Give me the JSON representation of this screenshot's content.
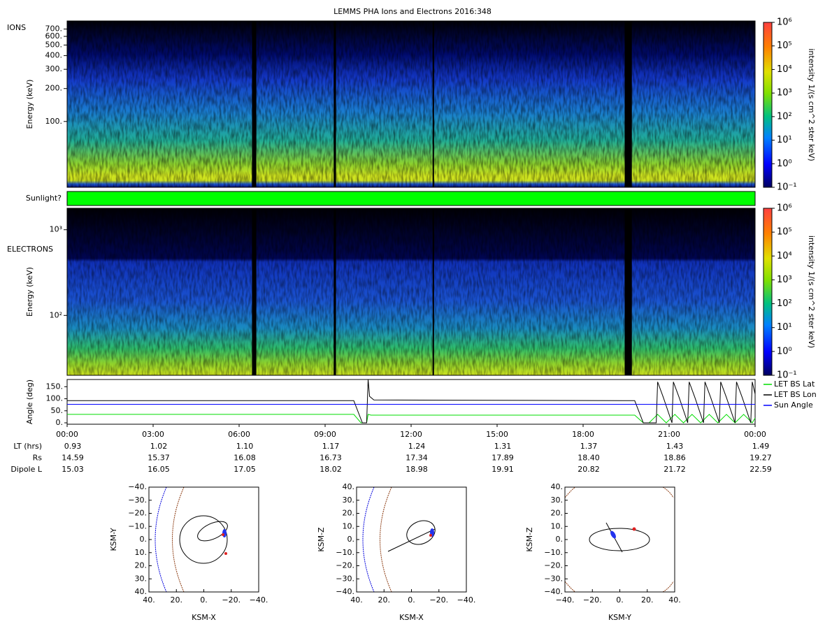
{
  "title": "LEMMS PHA Ions and Electrons  2016:348",
  "ions": {
    "label": "IONS",
    "ylabel": "Energy (keV)",
    "ylim": [
      25,
      830
    ],
    "log": true,
    "yticks": [
      {
        "value": 100,
        "label": "100."
      },
      {
        "value": 200,
        "label": "200."
      },
      {
        "value": 300,
        "label": "300."
      },
      {
        "value": 400,
        "label": "400."
      },
      {
        "value": 500,
        "label": "500."
      },
      {
        "value": 600,
        "label": "600."
      },
      {
        "value": 700,
        "label": "700."
      }
    ]
  },
  "sunlight": {
    "label": "Sunlight?",
    "color": "#00ff00"
  },
  "electrons": {
    "label": "ELECTRONS",
    "ylabel": "Energy (keV)",
    "ylim": [
      20,
      1780
    ],
    "log": true,
    "yticks": [
      {
        "value": 100,
        "label": "10²"
      },
      {
        "value": 1000,
        "label": "10³"
      }
    ]
  },
  "data_gaps": [
    [
      6.45,
      6.6
    ],
    [
      9.3,
      9.38
    ],
    [
      12.75,
      12.8
    ],
    [
      19.45,
      19.7
    ]
  ],
  "colorbar": {
    "label": "intensity 1/(s cm^2 ster keV)",
    "lim": [
      0.1,
      1000000
    ],
    "log": true,
    "ticks": [
      {
        "value": 0.1,
        "label": "10⁻¹"
      },
      {
        "value": 1,
        "label": "10⁰"
      },
      {
        "value": 10,
        "label": "10¹"
      },
      {
        "value": 100,
        "label": "10²"
      },
      {
        "value": 1000,
        "label": "10³"
      },
      {
        "value": 10000,
        "label": "10⁴"
      },
      {
        "value": 100000,
        "label": "10⁵"
      },
      {
        "value": 1000000,
        "label": "10⁶"
      }
    ]
  },
  "time_axis": {
    "xlim": [
      0,
      24
    ],
    "xticks": [
      {
        "value": 0,
        "label": "00:00"
      },
      {
        "value": 3,
        "label": "03:00"
      },
      {
        "value": 6,
        "label": "06:00"
      },
      {
        "value": 9,
        "label": "09:00"
      },
      {
        "value": 12,
        "label": "12:00"
      },
      {
        "value": 15,
        "label": "15:00"
      },
      {
        "value": 18,
        "label": "18:00"
      },
      {
        "value": 21,
        "label": "21:00"
      },
      {
        "value": 24,
        "label": "00:00"
      }
    ]
  },
  "angle": {
    "type": "line",
    "ylabel": "Angle (deg)",
    "ylim": [
      0,
      180
    ],
    "yticks": [
      {
        "value": 0,
        "label": "0."
      },
      {
        "value": 50,
        "label": "50."
      },
      {
        "value": 100,
        "label": "100."
      },
      {
        "value": 150,
        "label": "150."
      }
    ],
    "legend": "right",
    "series": [
      {
        "name": "LET BS Lat",
        "color": "#00dd00",
        "x": [
          0,
          10.0,
          10.25,
          10.45,
          10.5,
          10.6,
          19.8,
          20.1,
          20.3,
          20.6,
          20.9,
          21.2,
          21.5,
          21.8,
          22.1,
          22.4,
          22.7,
          23.0,
          23.3,
          23.6,
          23.9,
          24
        ],
        "values": [
          35,
          35,
          0,
          0,
          35,
          32,
          32,
          0,
          0,
          35,
          0,
          35,
          0,
          35,
          0,
          35,
          0,
          35,
          0,
          35,
          0,
          20
        ]
      },
      {
        "name": "LET BS Lon",
        "color": "#000000",
        "x": [
          0,
          10.0,
          10.3,
          10.45,
          10.5,
          10.55,
          10.7,
          19.8,
          20.1,
          20.55,
          20.6,
          20.8,
          21.1,
          21.15,
          21.35,
          21.65,
          21.7,
          21.9,
          22.2,
          22.25,
          22.45,
          22.75,
          22.8,
          23.0,
          23.3,
          23.35,
          23.55,
          23.85,
          23.9,
          24
        ],
        "values": [
          92,
          92,
          0,
          0,
          180,
          110,
          95,
          92,
          0,
          0,
          170,
          105,
          0,
          170,
          105,
          0,
          170,
          105,
          0,
          170,
          105,
          0,
          170,
          105,
          0,
          170,
          105,
          0,
          170,
          120
        ]
      },
      {
        "name": "Sun Angle",
        "color": "#0000ff",
        "x": [
          0,
          24
        ],
        "values": [
          77,
          77
        ]
      }
    ]
  },
  "ephemeris": [
    {
      "label": "LT (hrs)",
      "values": [
        "0.93",
        "1.02",
        "1.10",
        "1.17",
        "1.24",
        "1.31",
        "1.37",
        "1.43",
        "1.49"
      ]
    },
    {
      "label": "Rs",
      "values": [
        "14.59",
        "15.37",
        "16.08",
        "16.73",
        "17.34",
        "17.89",
        "18.40",
        "18.86",
        "19.27"
      ]
    },
    {
      "label": "Dipole L",
      "values": [
        "15.03",
        "16.05",
        "17.05",
        "18.02",
        "18.98",
        "19.91",
        "20.82",
        "21.72",
        "22.59"
      ]
    }
  ],
  "orbits": [
    {
      "xlabel": "KSM-X",
      "ylabel": "KSM-Y",
      "xlim": [
        40,
        -40
      ],
      "ylim": [
        40,
        -40
      ],
      "xticks": [
        {
          "value": 40,
          "label": "40."
        },
        {
          "value": 20,
          "label": "20."
        },
        {
          "value": 0,
          "label": "0."
        },
        {
          "value": -20,
          "label": "−20."
        },
        {
          "value": -40,
          "label": "−40."
        }
      ],
      "yticks": [
        {
          "value": -40,
          "label": "−40."
        },
        {
          "value": -30,
          "label": "−30."
        },
        {
          "value": -20,
          "label": "−20."
        },
        {
          "value": -10,
          "label": "−10."
        },
        {
          "value": 0,
          "label": "0."
        },
        {
          "value": 10,
          "label": "10."
        },
        {
          "value": 20,
          "label": "20."
        },
        {
          "value": 30,
          "label": "30."
        },
        {
          "value": 40,
          "label": "40."
        }
      ]
    },
    {
      "xlabel": "KSM-X",
      "ylabel": "KSM-Z",
      "xlim": [
        40,
        -40
      ],
      "ylim": [
        -40,
        40
      ],
      "xticks": [
        {
          "value": 40,
          "label": "40."
        },
        {
          "value": 20,
          "label": "20."
        },
        {
          "value": 0,
          "label": "0."
        },
        {
          "value": -20,
          "label": "−20."
        },
        {
          "value": -40,
          "label": "−40."
        }
      ],
      "yticks": [
        {
          "value": 40,
          "label": "40."
        },
        {
          "value": 30,
          "label": "30."
        },
        {
          "value": 20,
          "label": "20."
        },
        {
          "value": 10,
          "label": "10."
        },
        {
          "value": 0,
          "label": "0."
        },
        {
          "value": -10,
          "label": "−10."
        },
        {
          "value": -20,
          "label": "−20."
        },
        {
          "value": -30,
          "label": "−30."
        },
        {
          "value": -40,
          "label": "−40."
        }
      ]
    },
    {
      "xlabel": "KSM-Y",
      "ylabel": "KSM-Z",
      "xlim": [
        -40,
        40
      ],
      "ylim": [
        -40,
        40
      ],
      "xticks": [
        {
          "value": -40,
          "label": "−40."
        },
        {
          "value": -20,
          "label": "−20."
        },
        {
          "value": 0,
          "label": "0."
        },
        {
          "value": 20,
          "label": "20."
        },
        {
          "value": 40,
          "label": "40."
        }
      ],
      "yticks": [
        {
          "value": 40,
          "label": "40."
        },
        {
          "value": 30,
          "label": "30."
        },
        {
          "value": 20,
          "label": "20."
        },
        {
          "value": 10,
          "label": "10."
        },
        {
          "value": 0,
          "label": "0."
        },
        {
          "value": -10,
          "label": "−10."
        },
        {
          "value": -20,
          "label": "−20."
        },
        {
          "value": -30,
          "label": "−30."
        },
        {
          "value": -40,
          "label": "−40."
        }
      ]
    }
  ]
}
